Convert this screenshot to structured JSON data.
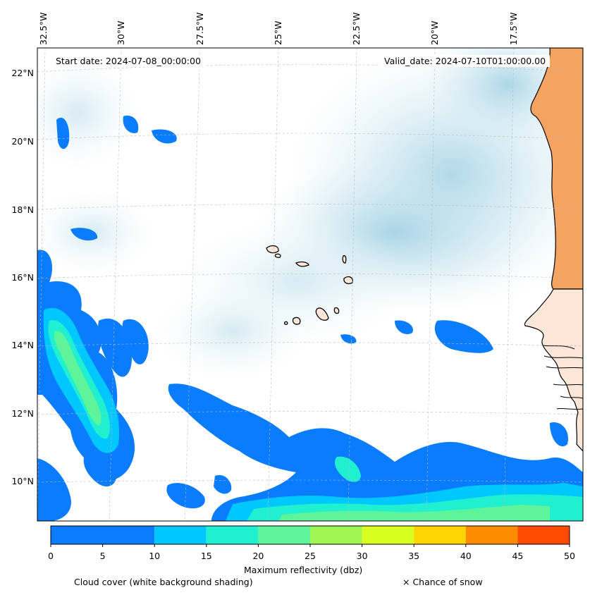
{
  "map": {
    "start_date": "Start date: 2024-07-08_00:00:00",
    "valid_date": "Valid_date: 2024-07-10T01:00:00.00",
    "lat_labels": [
      "22°N",
      "20°N",
      "18°N",
      "16°N",
      "14°N",
      "12°N",
      "10°N"
    ],
    "lon_labels": [
      "32.5°W",
      "30°W",
      "27.5°W",
      "25°W",
      "22.5°W",
      "20°W",
      "17.5°W"
    ]
  },
  "colorbar": {
    "title": "Maximum reflectivity (dbz)",
    "ticks": [
      "0",
      "5",
      "10",
      "15",
      "20",
      "25",
      "30",
      "35",
      "40",
      "45",
      "50"
    ],
    "bins": [
      0,
      10,
      15,
      20,
      25,
      30,
      35,
      40,
      45,
      50
    ],
    "colors": [
      "#0a7cff",
      "#00c8ff",
      "#20f0d0",
      "#5ef59a",
      "#a0f555",
      "#d8ff20",
      "#ffd400",
      "#ff8c00",
      "#ff4a00"
    ]
  },
  "legend": {
    "cloud_cover": "Cloud cover (white background shading)",
    "snow": "× Chance of snow"
  },
  "colors": {
    "land": "#f4a460",
    "cloud": "#add8e6",
    "coast": "#000000"
  }
}
